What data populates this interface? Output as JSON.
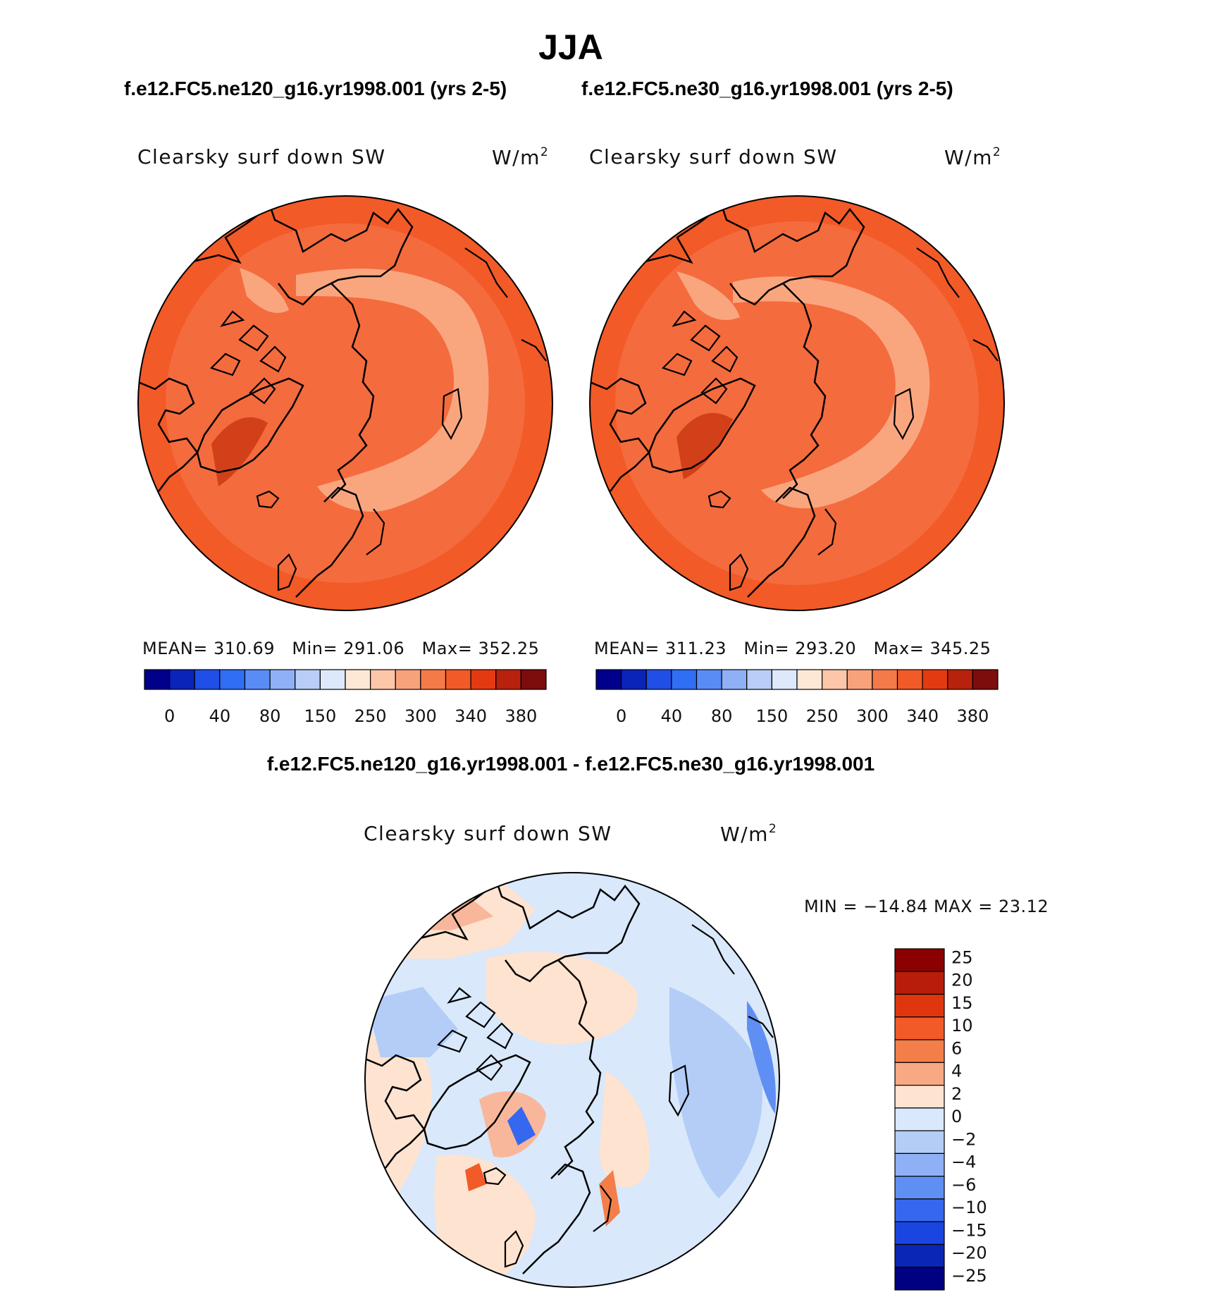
{
  "season_title": "JJA",
  "panels": [
    {
      "case_title": "f.e12.FC5.ne120_g16.yr1998.001 (yrs 2-5)",
      "variable_label": "Clearsky surf down SW",
      "units_base": "W/m",
      "units_exp": "2",
      "stats": {
        "mean_label": "MEAN=",
        "mean": "310.69",
        "min_label": "Min=",
        "min": "291.06",
        "max_label": "Max=",
        "max": "352.25"
      }
    },
    {
      "case_title": "f.e12.FC5.ne30_g16.yr1998.001 (yrs 2-5)",
      "variable_label": "Clearsky surf down SW",
      "units_base": "W/m",
      "units_exp": "2",
      "stats": {
        "mean_label": "MEAN=",
        "mean": "311.23",
        "min_label": "Min=",
        "min": "293.20",
        "max_label": "Max=",
        "max": "345.25"
      }
    }
  ],
  "abs_colorbar": {
    "colors": [
      "#00008b",
      "#0a23b8",
      "#1f4fe6",
      "#2f6ef5",
      "#5a8cf5",
      "#8fb0f5",
      "#b8cdf7",
      "#dde9fb",
      "#fde8d6",
      "#fcc6a8",
      "#f8a27c",
      "#f47a4a",
      "#f25a28",
      "#e43a12",
      "#b8220c",
      "#7d0c0c"
    ],
    "tick_labels": [
      "0",
      "40",
      "80",
      "150",
      "250",
      "300",
      "340",
      "380"
    ]
  },
  "difference": {
    "title": "f.e12.FC5.ne120_g16.yr1998.001 - f.e12.FC5.ne30_g16.yr1998.001",
    "variable_label": "Clearsky surf down SW",
    "units_base": "W/m",
    "units_exp": "2",
    "stats_text": "MIN = −14.84 MAX =   23.12",
    "colorbar": {
      "colors": [
        "#8b0000",
        "#b81c0a",
        "#e0360f",
        "#f25a28",
        "#f47e4a",
        "#f8a882",
        "#fde3d0",
        "#d9e8fb",
        "#b3cdf7",
        "#8fb0f5",
        "#5f8ff2",
        "#3568ee",
        "#1b45e0",
        "#0a26b5",
        "#000080"
      ],
      "labels": [
        "25",
        "20",
        "15",
        "10",
        "6",
        "4",
        "2",
        "0",
        "−2",
        "−4",
        "−6",
        "−10",
        "−15",
        "−20",
        "−25"
      ]
    }
  },
  "colors": {
    "map_base": "#f46b3e",
    "map_edge": "#f25a28",
    "map_inner_light": "#f78c5e",
    "map_pale": "#f9a67f",
    "greenland_dark": "#d2401a",
    "diff_base": "#d9e8fb",
    "diff_pos": "#fde3d0",
    "diff_pos2": "#f8b79a",
    "diff_neg": "#b3cdf7"
  }
}
